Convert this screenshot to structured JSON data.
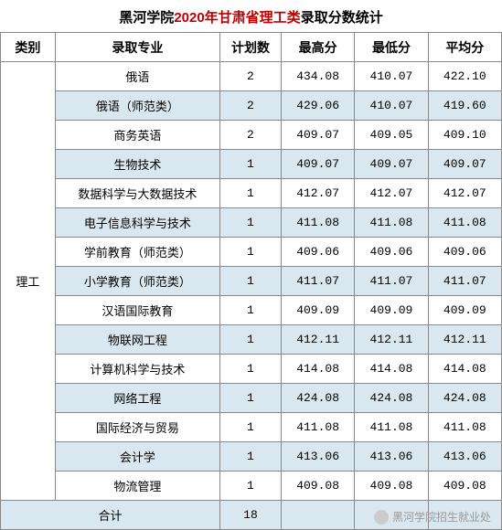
{
  "title": {
    "prefix_black": "黑河学院",
    "middle_red": "2020年甘肃省理工类",
    "suffix_black": "录取分数统计",
    "title_fontsize": 15,
    "color_black": "#000000",
    "color_red": "#c00000"
  },
  "table": {
    "type": "table",
    "header_bg": "#ffffff",
    "alt_row_bg": "#d9e7f0",
    "border_color": "#888888",
    "font_family": "Microsoft YaHei",
    "cell_fontsize": 13,
    "header_fontsize": 14,
    "columns": [
      {
        "key": "category",
        "label": "类别",
        "width": 58,
        "align": "center"
      },
      {
        "key": "major",
        "label": "录取专业",
        "width": 175,
        "align": "center"
      },
      {
        "key": "plan",
        "label": "计划数",
        "width": 65,
        "align": "center"
      },
      {
        "key": "max",
        "label": "最高分",
        "width": 78,
        "align": "center"
      },
      {
        "key": "min",
        "label": "最低分",
        "width": 78,
        "align": "center"
      },
      {
        "key": "avg",
        "label": "平均分",
        "width": 78,
        "align": "center"
      }
    ],
    "category_label": "理工",
    "rows": [
      {
        "major": "俄语",
        "plan": "2",
        "max": "434.08",
        "min": "410.07",
        "avg": "422.10"
      },
      {
        "major": "俄语（师范类）",
        "plan": "2",
        "max": "429.06",
        "min": "410.07",
        "avg": "419.60"
      },
      {
        "major": "商务英语",
        "plan": "2",
        "max": "409.07",
        "min": "409.05",
        "avg": "409.10"
      },
      {
        "major": "生物技术",
        "plan": "1",
        "max": "409.07",
        "min": "409.07",
        "avg": "409.07"
      },
      {
        "major": "数据科学与大数据技术",
        "plan": "1",
        "max": "412.07",
        "min": "412.07",
        "avg": "412.07"
      },
      {
        "major": "电子信息科学与技术",
        "plan": "1",
        "max": "411.08",
        "min": "411.08",
        "avg": "411.08"
      },
      {
        "major": "学前教育（师范类）",
        "plan": "1",
        "max": "409.06",
        "min": "409.06",
        "avg": "409.06"
      },
      {
        "major": "小学教育（师范类）",
        "plan": "1",
        "max": "411.07",
        "min": "411.07",
        "avg": "411.07"
      },
      {
        "major": "汉语国际教育",
        "plan": "1",
        "max": "409.09",
        "min": "409.09",
        "avg": "409.09"
      },
      {
        "major": "物联网工程",
        "plan": "1",
        "max": "412.11",
        "min": "412.11",
        "avg": "412.11"
      },
      {
        "major": "计算机科学与技术",
        "plan": "1",
        "max": "414.08",
        "min": "414.08",
        "avg": "414.08"
      },
      {
        "major": "网络工程",
        "plan": "1",
        "max": "424.08",
        "min": "424.08",
        "avg": "424.08"
      },
      {
        "major": "国际经济与贸易",
        "plan": "1",
        "max": "411.08",
        "min": "411.08",
        "avg": "411.08"
      },
      {
        "major": "会计学",
        "plan": "1",
        "max": "413.06",
        "min": "413.06",
        "avg": "413.06"
      },
      {
        "major": "物流管理",
        "plan": "1",
        "max": "409.08",
        "min": "409.08",
        "avg": "409.08"
      }
    ],
    "total": {
      "label": "合计",
      "plan": "18",
      "max": "",
      "min": "",
      "avg": ""
    }
  },
  "watermark": {
    "text": "黑河学院招生就业处"
  }
}
